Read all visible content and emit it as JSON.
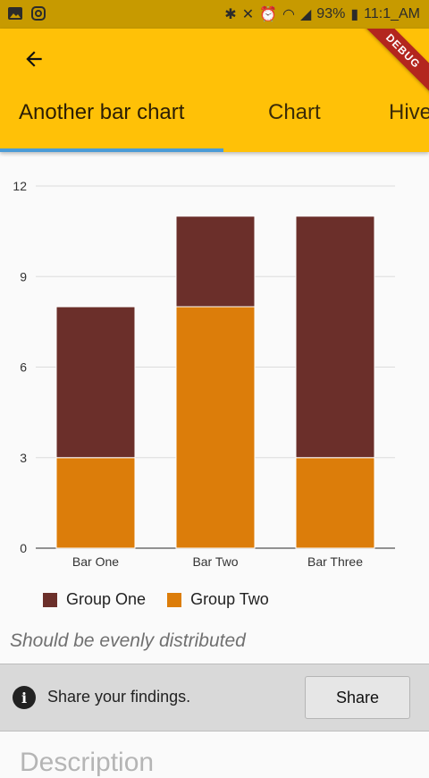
{
  "status": {
    "battery": "93%",
    "time": "11:1_AM"
  },
  "appbar": {
    "debug_label": "DEBUG",
    "tabs": [
      {
        "label": "Another bar chart"
      },
      {
        "label": "Chart"
      },
      {
        "label": "Hive"
      }
    ]
  },
  "chart_data": {
    "type": "bar",
    "stacked": true,
    "categories": [
      "Bar One",
      "Bar Two",
      "Bar Three"
    ],
    "series": [
      {
        "name": "Group One",
        "values": [
          5,
          3,
          8
        ],
        "color": "#6b2f2a"
      },
      {
        "name": "Group Two",
        "values": [
          3,
          8,
          3
        ],
        "color": "#dc7d0a"
      }
    ],
    "ylim": [
      0,
      12
    ],
    "yticks": [
      "0",
      "3",
      "6",
      "9",
      "12"
    ],
    "grid": true,
    "legend": "bottom-left"
  },
  "legend": {
    "group_one": "Group One",
    "group_two": "Group Two"
  },
  "note": "Should be evenly distributed",
  "snackbar": {
    "message": "Share your findings.",
    "action": "Share"
  },
  "section": {
    "title": "Description"
  }
}
